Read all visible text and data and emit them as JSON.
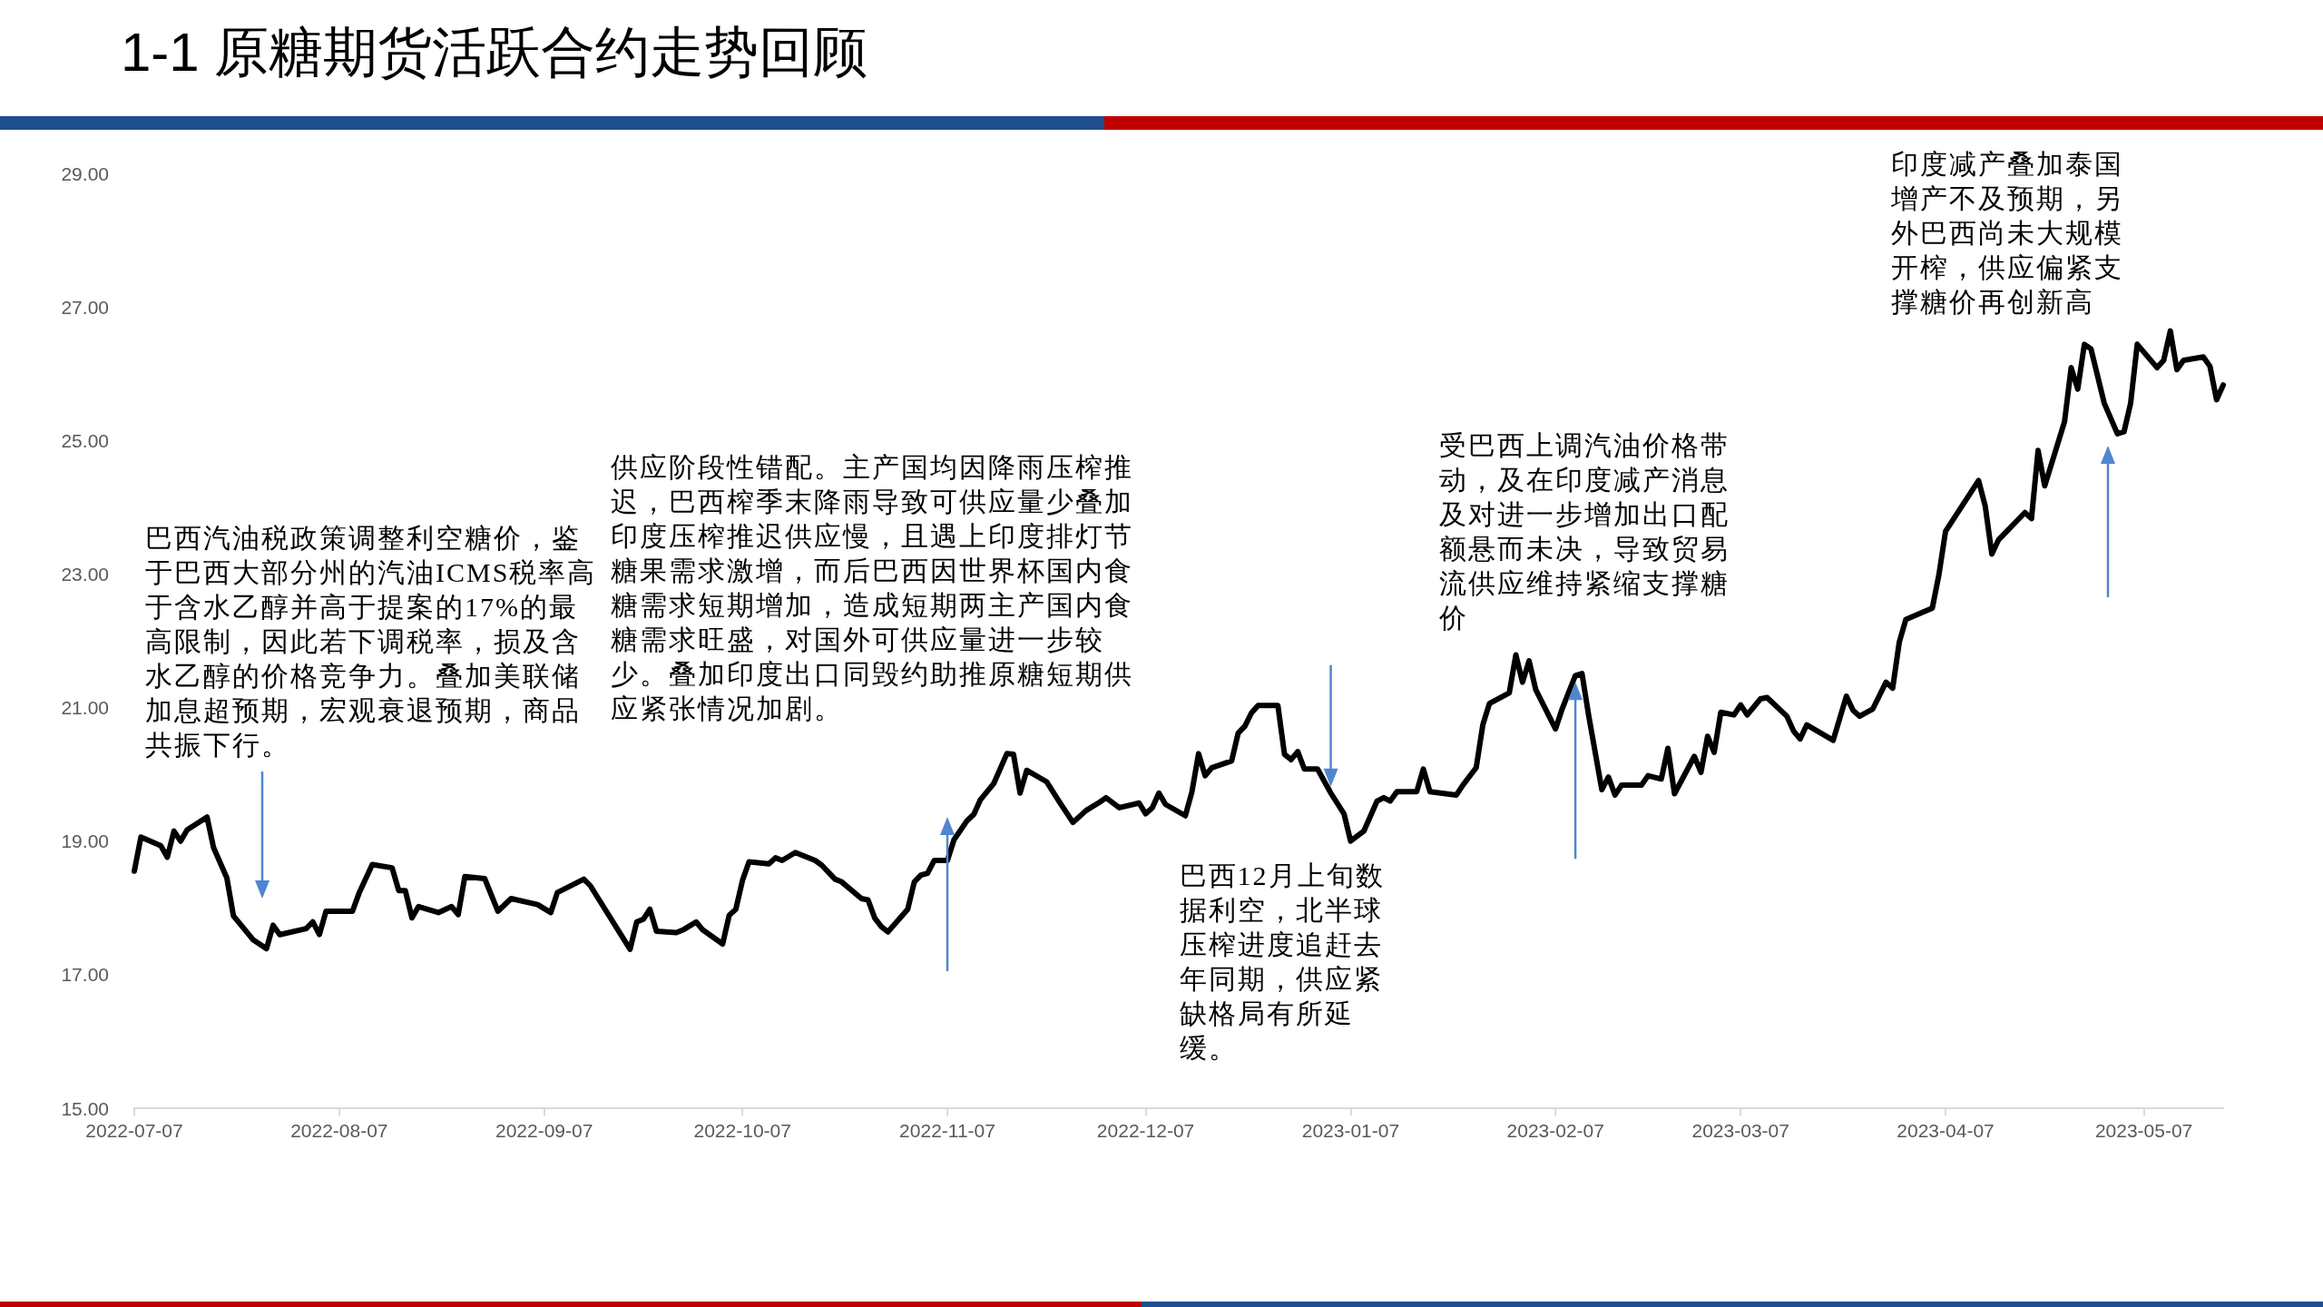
{
  "chart_data": {
    "type": "line",
    "title": "1-1 原糖期货活跃合约走势回顾",
    "x": [
      "2022-07-07",
      "2022-07-08",
      "2022-07-11",
      "2022-07-12",
      "2022-07-13",
      "2022-07-14",
      "2022-07-15",
      "2022-07-18",
      "2022-07-19",
      "2022-07-21",
      "2022-07-22",
      "2022-07-25",
      "2022-07-27",
      "2022-07-28",
      "2022-07-29",
      "2022-08-02",
      "2022-08-03",
      "2022-08-04",
      "2022-08-05",
      "2022-08-09",
      "2022-08-10",
      "2022-08-12",
      "2022-08-15",
      "2022-08-16",
      "2022-08-17",
      "2022-08-18",
      "2022-08-19",
      "2022-08-22",
      "2022-08-24",
      "2022-08-25",
      "2022-08-26",
      "2022-08-29",
      "2022-08-31",
      "2022-09-02",
      "2022-09-06",
      "2022-09-08",
      "2022-09-09",
      "2022-09-13",
      "2022-09-14",
      "2022-09-20",
      "2022-09-21",
      "2022-09-22",
      "2022-09-23",
      "2022-09-24",
      "2022-09-27",
      "2022-09-28",
      "2022-09-30",
      "2022-10-01",
      "2022-10-04",
      "2022-10-05",
      "2022-10-06",
      "2022-10-07",
      "2022-10-08",
      "2022-10-11",
      "2022-10-12",
      "2022-10-13",
      "2022-10-15",
      "2022-10-18",
      "2022-10-19",
      "2022-10-21",
      "2022-10-22",
      "2022-10-25",
      "2022-10-26",
      "2022-10-27",
      "2022-10-28",
      "2022-10-29",
      "2022-11-01",
      "2022-11-02",
      "2022-11-03",
      "2022-11-04",
      "2022-11-05",
      "2022-11-07",
      "2022-11-08",
      "2022-11-10",
      "2022-11-11",
      "2022-11-12",
      "2022-11-14",
      "2022-11-16",
      "2022-11-17",
      "2022-11-18",
      "2022-11-19",
      "2022-11-22",
      "2022-11-24",
      "2022-11-26",
      "2022-11-28",
      "2022-11-30",
      "2022-12-01",
      "2022-12-03",
      "2022-12-06",
      "2022-12-07",
      "2022-12-08",
      "2022-12-09",
      "2022-12-10",
      "2022-12-13",
      "2022-12-14",
      "2022-12-15",
      "2022-12-16",
      "2022-12-17",
      "2022-12-20",
      "2022-12-21",
      "2022-12-22",
      "2022-12-23",
      "2022-12-24",
      "2022-12-27",
      "2022-12-28",
      "2022-12-29",
      "2022-12-30",
      "2022-12-31",
      "2023-01-02",
      "2023-01-04",
      "2023-01-06",
      "2023-01-07",
      "2023-01-09",
      "2023-01-11",
      "2023-01-12",
      "2023-01-13",
      "2023-01-14",
      "2023-01-17",
      "2023-01-18",
      "2023-01-19",
      "2023-01-23",
      "2023-01-24",
      "2023-01-26",
      "2023-01-27",
      "2023-01-28",
      "2023-01-31",
      "2023-02-01",
      "2023-02-02",
      "2023-02-03",
      "2023-02-04",
      "2023-02-07",
      "2023-02-08",
      "2023-02-10",
      "2023-02-11",
      "2023-02-12",
      "2023-02-14",
      "2023-02-15",
      "2023-02-16",
      "2023-02-17",
      "2023-02-20",
      "2023-02-21",
      "2023-02-23",
      "2023-02-24",
      "2023-02-25",
      "2023-02-28",
      "2023-03-01",
      "2023-03-02",
      "2023-03-03",
      "2023-03-04",
      "2023-03-06",
      "2023-03-07",
      "2023-03-08",
      "2023-03-10",
      "2023-03-11",
      "2023-03-14",
      "2023-03-15",
      "2023-03-16",
      "2023-03-17",
      "2023-03-21",
      "2023-03-22",
      "2023-03-23",
      "2023-03-24",
      "2023-03-25",
      "2023-03-27",
      "2023-03-29",
      "2023-03-30",
      "2023-03-31",
      "2023-04-01",
      "2023-04-05",
      "2023-04-06",
      "2023-04-07",
      "2023-04-12",
      "2023-04-13",
      "2023-04-14",
      "2023-04-15",
      "2023-04-19",
      "2023-04-20",
      "2023-04-21",
      "2023-04-22",
      "2023-04-25",
      "2023-04-26",
      "2023-04-27",
      "2023-04-28",
      "2023-04-29",
      "2023-05-01",
      "2023-05-03",
      "2023-05-04",
      "2023-05-05",
      "2023-05-06",
      "2023-05-09",
      "2023-05-10",
      "2023-05-11",
      "2023-05-12",
      "2023-05-13",
      "2023-05-16",
      "2023-05-17",
      "2023-05-18",
      "2023-05-19"
    ],
    "values": [
      18.55,
      19.06,
      18.93,
      18.76,
      19.15,
      19.0,
      19.17,
      19.36,
      18.9,
      18.45,
      17.88,
      17.52,
      17.39,
      17.74,
      17.6,
      17.69,
      17.79,
      17.6,
      17.95,
      17.95,
      18.22,
      18.65,
      18.6,
      18.26,
      18.26,
      17.85,
      18.02,
      17.93,
      18.02,
      17.9,
      18.47,
      18.44,
      17.95,
      18.14,
      18.05,
      17.93,
      18.23,
      18.43,
      18.33,
      17.38,
      17.79,
      17.83,
      17.98,
      17.65,
      17.63,
      17.67,
      17.79,
      17.67,
      17.46,
      17.89,
      17.98,
      18.41,
      18.69,
      18.66,
      18.75,
      18.71,
      18.83,
      18.71,
      18.64,
      18.43,
      18.39,
      18.14,
      18.12,
      17.85,
      17.72,
      17.64,
      17.98,
      18.39,
      18.49,
      18.52,
      18.71,
      18.71,
      19.02,
      19.31,
      19.4,
      19.62,
      19.86,
      20.31,
      20.3,
      19.72,
      20.06,
      19.89,
      19.58,
      19.28,
      19.46,
      19.58,
      19.65,
      19.5,
      19.57,
      19.41,
      19.5,
      19.72,
      19.55,
      19.38,
      19.74,
      20.31,
      19.98,
      20.1,
      20.2,
      20.62,
      20.72,
      20.92,
      21.03,
      21.03,
      20.3,
      20.22,
      20.34,
      20.08,
      20.08,
      19.72,
      19.41,
      19.0,
      19.15,
      19.6,
      19.65,
      19.6,
      19.74,
      19.74,
      20.08,
      19.74,
      19.69,
      19.84,
      20.1,
      20.74,
      21.06,
      21.22,
      21.79,
      21.38,
      21.7,
      21.27,
      20.68,
      20.98,
      21.48,
      21.51,
      20.89,
      19.77,
      19.96,
      19.69,
      19.84,
      19.84,
      19.98,
      19.93,
      20.39,
      19.71,
      20.27,
      20.03,
      20.57,
      20.33,
      20.93,
      20.89,
      21.04,
      20.89,
      21.13,
      21.15,
      20.87,
      20.65,
      20.53,
      20.74,
      20.51,
      20.84,
      21.17,
      20.96,
      20.87,
      20.98,
      21.38,
      21.29,
      21.98,
      22.32,
      22.49,
      22.99,
      23.64,
      24.4,
      24.02,
      23.3,
      23.51,
      23.92,
      23.83,
      24.85,
      24.32,
      25.28,
      26.09,
      25.77,
      26.44,
      26.37,
      25.56,
      25.1,
      25.13,
      25.56,
      26.44,
      26.09,
      26.2,
      26.64,
      26.06,
      26.2,
      26.25,
      26.11,
      25.61,
      25.83
    ],
    "color": "#000000",
    "xlim": [
      "2022-07-07",
      "2023-05-19"
    ],
    "xticks": [
      "2022-07-07",
      "2022-08-07",
      "2022-09-07",
      "2022-10-07",
      "2022-11-07",
      "2022-12-07",
      "2023-01-07",
      "2023-02-07",
      "2023-03-07",
      "2023-04-07",
      "2023-05-07"
    ],
    "ylim": [
      15,
      29
    ],
    "yticks": [
      {
        "value": 15,
        "label": "15.00"
      },
      {
        "value": 17,
        "label": "17.00"
      },
      {
        "value": 19,
        "label": "19.00"
      },
      {
        "value": 21,
        "label": "21.00"
      },
      {
        "value": 23,
        "label": "23.00"
      },
      {
        "value": 25,
        "label": "25.00"
      },
      {
        "value": 27,
        "label": "27.00"
      },
      {
        "value": 29,
        "label": "29.00"
      }
    ],
    "annotations": [
      "巴西汽油税政策调整利空糖价，鉴于巴西大部分州的汽油ICMS税率高于含水乙醇并高于提案的17%的最高限制，因此若下调税率，损及含水乙醇的价格竞争力。叠加美联储加息超预期，宏观衰退预期，商品共振下行。",
      "供应阶段性错配。主产国均因降雨压榨推迟，巴西榨季末降雨导致可供应量少叠加印度压榨推迟供应慢，且遇上印度排灯节糖果需求激增，而后巴西因世界杯国内食糖需求短期增加，造成短期两主产国内食糖需求旺盛，对国外可供应量进一步较少。叠加印度出口同毁约助推原糖短期供应紧张情况加剧。",
      {
        "text": "巴西12月上旬数据利空，北半球压榨进度追赶去年同期，供应紧缺格局有所延缓。",
        "x": "2023-01-04",
        "y": 19.72
      },
      {
        "text": "受巴西上调汽油价格带动，及在印度减产消息及对进一步增加出口配额悬而未决，导致贸易流供应维持紧缩支撑糖价",
        "x": "2023-02-10",
        "y": 21.48
      },
      "印度减产叠加泰国增产不及预期，另外巴西尚未大规模开榨，供应偏紧支撑糖价再创新高"
    ]
  }
}
